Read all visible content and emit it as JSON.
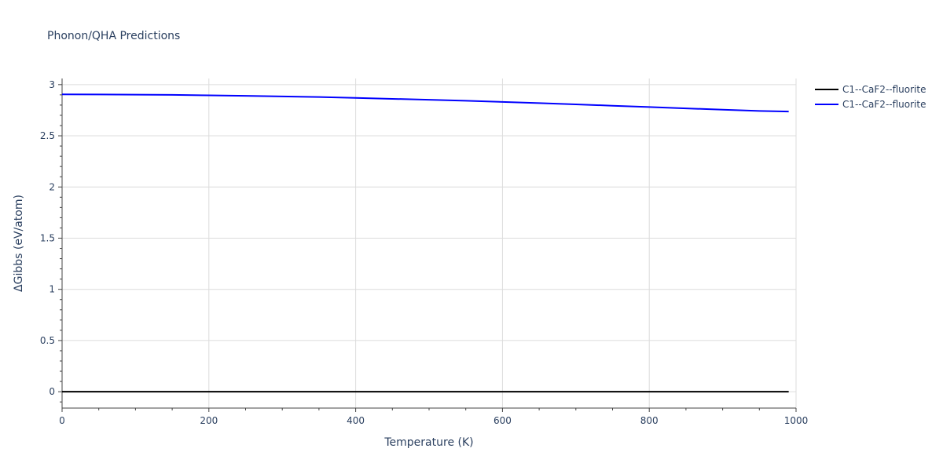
{
  "chart_data": {
    "type": "line",
    "title": "Phonon/QHA Predictions",
    "xlabel": "Temperature (K)",
    "ylabel": "ΔGibbs (eV/atom)",
    "xlim": [
      0,
      1000
    ],
    "ylim": [
      -0.16,
      3.06
    ],
    "xticks": [
      0,
      200,
      400,
      600,
      800,
      1000
    ],
    "xtick_labels": [
      "0",
      "200",
      "400",
      "600",
      "800",
      "1000"
    ],
    "yticks": [
      0,
      0.5,
      1,
      1.5,
      2,
      2.5,
      3
    ],
    "ytick_labels": [
      "0",
      "0.5",
      "1",
      "1.5",
      "2",
      "2.5",
      "3"
    ],
    "grid": true,
    "legend_position": "top-right outside",
    "series": [
      {
        "name": "C1--CaF2--fluorite",
        "color": "#000000",
        "x": [
          0,
          100,
          200,
          300,
          400,
          500,
          600,
          700,
          800,
          900,
          990
        ],
        "y": [
          0,
          0,
          0,
          0,
          0,
          0,
          0,
          0,
          0,
          0,
          0
        ]
      },
      {
        "name": "C1--CaF2--fluorite",
        "color": "#0000ff",
        "x": [
          0,
          50,
          100,
          150,
          200,
          250,
          300,
          350,
          400,
          450,
          500,
          550,
          600,
          650,
          700,
          750,
          800,
          850,
          900,
          950,
          990
        ],
        "y": [
          2.905,
          2.904,
          2.902,
          2.9,
          2.895,
          2.89,
          2.885,
          2.879,
          2.87,
          2.861,
          2.852,
          2.842,
          2.831,
          2.819,
          2.807,
          2.794,
          2.781,
          2.768,
          2.755,
          2.743,
          2.737
        ]
      }
    ]
  }
}
